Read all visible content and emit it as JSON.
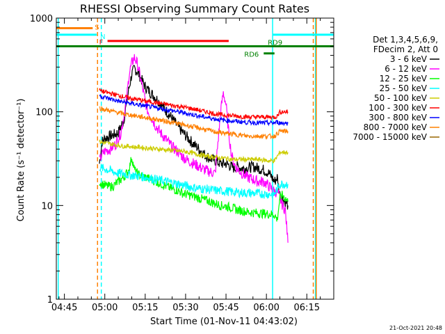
{
  "chart_data": {
    "type": "line",
    "title": "RHESSI Observing Summary Count Rates",
    "xlabel": "Start Time (01-Nov-11 04:43:02)",
    "ylabel": "Count Rate (s⁻¹ detector⁻¹)",
    "y_scale": "log",
    "ylim": [
      1,
      1000
    ],
    "xlim_minutes": [
      -3.0,
      100.0
    ],
    "x_ticks": [
      {
        "label": "04:45",
        "min": 0
      },
      {
        "label": "05:00",
        "min": 15
      },
      {
        "label": "05:15",
        "min": 30
      },
      {
        "label": "05:30",
        "min": 45
      },
      {
        "label": "05:45",
        "min": 60
      },
      {
        "label": "06:00",
        "min": 75
      },
      {
        "label": "06:15",
        "min": 90
      }
    ],
    "y_ticks": [
      {
        "label": "1",
        "value": 1
      },
      {
        "label": "10",
        "value": 10
      },
      {
        "label": "100",
        "value": 100
      },
      {
        "label": "1000",
        "value": 1000
      }
    ],
    "legend_header": [
      "Det 1,3,4,5,6,9,",
      "FDecim 2, Att 0"
    ],
    "legend_position": "right",
    "series": [
      {
        "name": "3 - 6 keV",
        "color": "#000000",
        "x": [
          13,
          14,
          15,
          17,
          19,
          20,
          21,
          22,
          23,
          24,
          25,
          26,
          27,
          28,
          29,
          30,
          32,
          34,
          36,
          38,
          40,
          42,
          44,
          46,
          48,
          50,
          52,
          54,
          56,
          58,
          60,
          61,
          62,
          63,
          64,
          66,
          68,
          70,
          72,
          74,
          75,
          76,
          77,
          78,
          79,
          80,
          81,
          82,
          83
        ],
        "y": [
          28,
          48,
          52,
          55,
          58,
          60,
          70,
          80,
          120,
          180,
          250,
          290,
          270,
          240,
          210,
          185,
          160,
          140,
          120,
          100,
          85,
          70,
          60,
          52,
          45,
          40,
          35,
          32,
          30,
          28,
          28,
          27,
          26,
          25,
          26,
          25,
          25,
          26,
          25,
          24,
          23,
          22,
          20,
          18,
          20,
          13,
          12,
          11,
          10
        ]
      },
      {
        "name": "6 - 12 keV",
        "color": "#ff00ff",
        "x": [
          13,
          14,
          15,
          17,
          19,
          21,
          23,
          24,
          25,
          26,
          27,
          28,
          29,
          30,
          31,
          32,
          34,
          36,
          38,
          40,
          42,
          44,
          46,
          48,
          50,
          52,
          54,
          56,
          58,
          59,
          60,
          61,
          62,
          63,
          64,
          66,
          68,
          70,
          72,
          74,
          75,
          76,
          77,
          78,
          79,
          80,
          81,
          82,
          83
        ],
        "y": [
          30,
          35,
          38,
          40,
          45,
          60,
          130,
          250,
          330,
          380,
          330,
          250,
          180,
          130,
          100,
          90,
          70,
          58,
          50,
          42,
          38,
          33,
          30,
          28,
          26,
          24,
          23,
          22,
          100,
          160,
          120,
          60,
          35,
          28,
          25,
          22,
          20,
          19,
          18,
          18,
          17,
          16,
          15,
          14,
          14,
          12,
          10,
          9,
          4
        ]
      },
      {
        "name": "12 - 25 keV",
        "color": "#00ff00",
        "x": [
          13,
          14,
          16,
          18,
          20,
          22,
          24,
          25,
          26,
          27,
          28,
          30,
          32,
          34,
          36,
          38,
          40,
          42,
          44,
          46,
          48,
          50,
          52,
          54,
          56,
          58,
          60,
          62,
          64,
          66,
          68,
          70,
          72,
          74,
          76,
          78,
          79,
          80,
          81,
          82,
          83
        ],
        "y": [
          18,
          17,
          16,
          16,
          18,
          20,
          24,
          33,
          24,
          22,
          21,
          20,
          19,
          18,
          17,
          16,
          15,
          14.5,
          13.5,
          13,
          12.5,
          12,
          11.5,
          11,
          10.5,
          10,
          9.8,
          9.5,
          9.0,
          8.8,
          8.5,
          8.4,
          8.3,
          8.2,
          8.1,
          8.0,
          7.0,
          12,
          13,
          12,
          11
        ]
      },
      {
        "name": "25 - 50 keV",
        "color": "#00ffff",
        "x": [
          13,
          14,
          16,
          18,
          20,
          22,
          24,
          26,
          28,
          30,
          32,
          34,
          36,
          38,
          40,
          42,
          44,
          46,
          48,
          50,
          52,
          54,
          56,
          58,
          60,
          62,
          64,
          66,
          68,
          70,
          72,
          74,
          76,
          78,
          80,
          82,
          83
        ],
        "y": [
          26,
          25,
          24,
          23,
          22,
          22,
          21,
          21,
          20.5,
          20,
          19.5,
          19,
          18.5,
          18,
          17.5,
          17,
          16.5,
          16,
          15.5,
          15.2,
          15,
          14.8,
          14.5,
          14.3,
          14.2,
          14,
          13.8,
          13.7,
          13.6,
          13.5,
          13.4,
          13.3,
          13.2,
          13.2,
          17,
          17,
          17
        ]
      },
      {
        "name": "50 - 100 keV",
        "color": "#cccc00",
        "x": [
          13,
          14,
          16,
          18,
          20,
          22,
          24,
          26,
          28,
          30,
          32,
          34,
          36,
          38,
          40,
          42,
          44,
          46,
          48,
          50,
          52,
          54,
          56,
          58,
          60,
          62,
          64,
          66,
          68,
          70,
          72,
          74,
          76,
          78,
          80,
          82,
          83
        ],
        "y": [
          48,
          47,
          46,
          45,
          44,
          43,
          43,
          42,
          42,
          41,
          41,
          40,
          40,
          39,
          39,
          38,
          38,
          37,
          36,
          35,
          34,
          33,
          33,
          32,
          32,
          31,
          31,
          31,
          31,
          31,
          31,
          30.5,
          30,
          30,
          37,
          37,
          37
        ]
      },
      {
        "name": "100 - 300 keV",
        "color": "#ff0000",
        "x": [
          13,
          14,
          16,
          18,
          20,
          22,
          24,
          26,
          28,
          30,
          32,
          34,
          36,
          38,
          40,
          42,
          44,
          46,
          48,
          50,
          52,
          54,
          56,
          58,
          60,
          62,
          64,
          66,
          68,
          70,
          72,
          74,
          76,
          78,
          79,
          80,
          82,
          83
        ],
        "y": [
          170,
          165,
          160,
          155,
          150,
          145,
          140,
          137,
          134,
          130,
          128,
          125,
          122,
          120,
          117,
          115,
          112,
          110,
          107,
          104,
          101,
          98,
          95,
          93,
          92,
          91,
          90,
          89,
          88,
          88,
          88,
          88,
          88,
          88,
          90,
          100,
          100,
          100
        ]
      },
      {
        "name": "300 - 800 keV",
        "color": "#0000ff",
        "x": [
          13,
          14,
          16,
          18,
          20,
          22,
          24,
          26,
          28,
          30,
          32,
          34,
          36,
          38,
          40,
          42,
          44,
          46,
          48,
          50,
          52,
          54,
          56,
          58,
          60,
          62,
          64,
          66,
          68,
          70,
          72,
          74,
          76,
          78,
          79,
          80,
          82,
          83
        ],
        "y": [
          150,
          145,
          140,
          135,
          130,
          127,
          124,
          121,
          118,
          115,
          113,
          110,
          108,
          105,
          103,
          100,
          98,
          95,
          93,
          90,
          88,
          86,
          84,
          82,
          81,
          80,
          79,
          78,
          77,
          77,
          76,
          76,
          76,
          76,
          78,
          76,
          76,
          75
        ]
      },
      {
        "name": "800 - 7000 keV",
        "color": "#ff8000",
        "x": [
          13,
          14,
          16,
          18,
          20,
          22,
          24,
          26,
          28,
          30,
          32,
          34,
          36,
          38,
          40,
          42,
          44,
          46,
          48,
          50,
          52,
          54,
          56,
          58,
          60,
          62,
          64,
          66,
          68,
          70,
          72,
          74,
          76,
          78,
          80,
          82,
          83
        ],
        "y": [
          110,
          107,
          104,
          101,
          98,
          95,
          93,
          91,
          89,
          87,
          85,
          83,
          81,
          79,
          77,
          75,
          73,
          71,
          69,
          67,
          65,
          63,
          61,
          60,
          59,
          58,
          57,
          56,
          55,
          55,
          55,
          55,
          55,
          55,
          62,
          62,
          62
        ]
      },
      {
        "name": "7000 - 15000 keV",
        "color": "#996600",
        "x": [],
        "y": []
      }
    ],
    "annotations": {
      "bars": [
        {
          "label": "S",
          "color": "#ff8000",
          "x0": -3.0,
          "x1": 10.5,
          "y": 780
        },
        {
          "label": "N",
          "color": "#00ffff",
          "x0": -3.0,
          "x1": 12.0,
          "y": 665
        },
        {
          "label": "F",
          "color": "#ff0000",
          "x0": 16.0,
          "x1": 61.0,
          "y": 570
        },
        {
          "label": "RD9",
          "color": "#008000",
          "x0": -3.0,
          "x1": 100.0,
          "y": 500
        },
        {
          "label": "RD6",
          "color": "#008000",
          "x0": 74.0,
          "x1": 78.0,
          "y": 420
        }
      ],
      "vlines": [
        {
          "x": -2.3,
          "color": "#00ffff",
          "dashed": false
        },
        {
          "x": 12.3,
          "color": "#ff8000",
          "dashed": true
        },
        {
          "x": 13.7,
          "color": "#00ffff",
          "dashed": true
        },
        {
          "x": 77.3,
          "color": "#00ffff",
          "dashed": false
        },
        {
          "x": 92.4,
          "color": "#ff8000",
          "dashed": true
        },
        {
          "x": 93.2,
          "color": "#00ffff",
          "dashed": false
        },
        {
          "x": 93.5,
          "color": "#ff8000",
          "dashed": false
        }
      ],
      "right_cyan_bar": {
        "color": "#00ffff",
        "x0": 77.3,
        "x1": 100.0,
        "y": 665
      }
    },
    "grid": false
  },
  "footer": {
    "timestamp": "21-Oct-2021 20:48"
  }
}
